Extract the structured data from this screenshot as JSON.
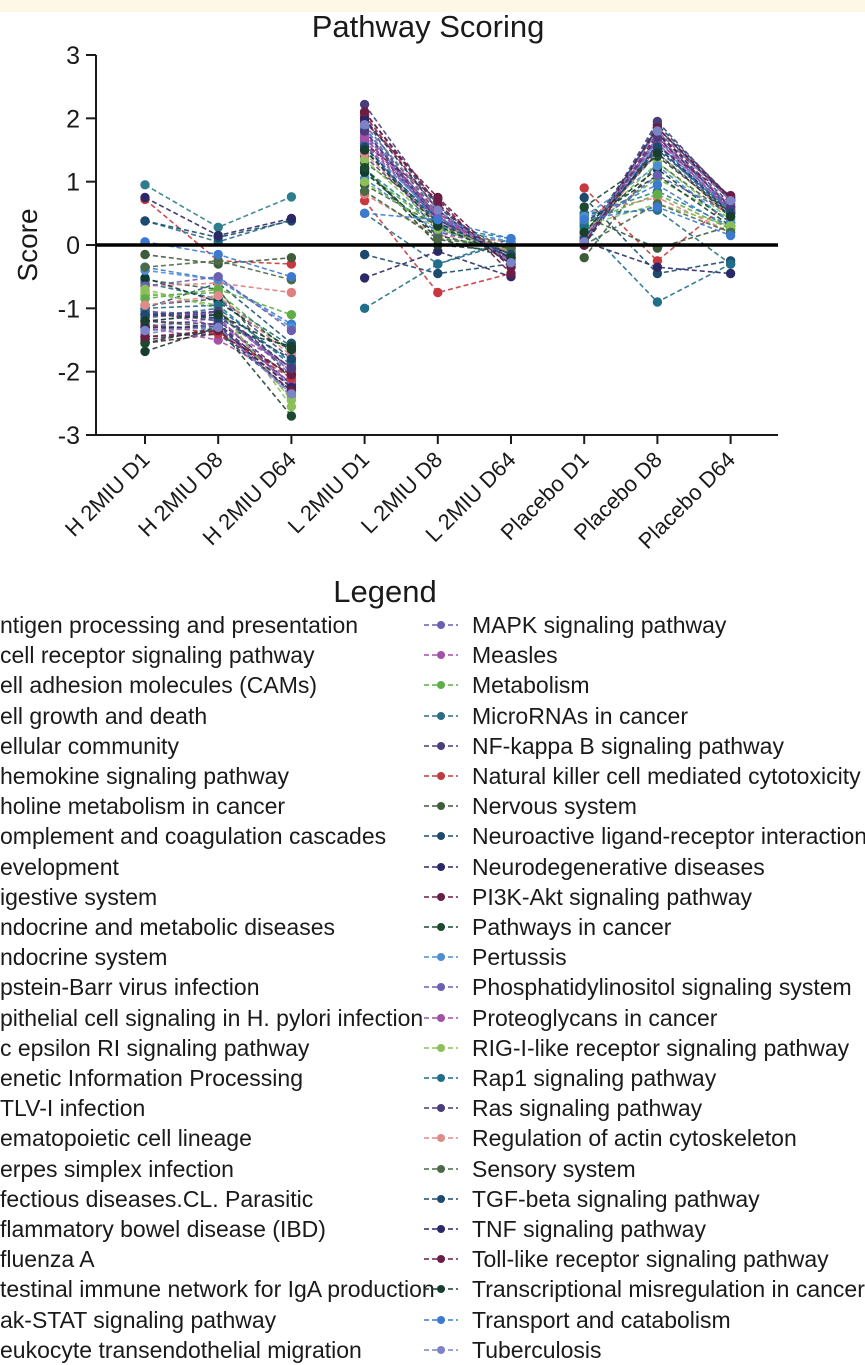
{
  "chart_data": {
    "type": "line",
    "title": "Pathway Scoring",
    "ylabel": "Score",
    "xlabel": "",
    "ylim": [
      -3,
      3
    ],
    "yticks": [
      3,
      2,
      1,
      0,
      -1,
      -2,
      -3
    ],
    "ytick_labels": [
      "3",
      "2",
      "1",
      "0",
      "-1",
      "-2",
      "-3"
    ],
    "categories": [
      "H 2MIU D1",
      "H 2MIU D8",
      "H 2MIU D64",
      "L 2MIU D1",
      "L 2MIU D8",
      "L 2MIU D64",
      "Placebo D1",
      "Placebo D8",
      "Placebo D64"
    ],
    "zero_line": true,
    "legend_title": "Legend",
    "legend_placement": "bottom",
    "series": [
      {
        "name": "ntigen processing and presentation",
        "color": "#7b6fb8",
        "values": [
          -1.22,
          -1.05,
          -2.05,
          1.75,
          0.35,
          -0.2,
          0.1,
          1.55,
          0.45
        ]
      },
      {
        "name": " cell receptor signaling pathway",
        "color": "#a050a8",
        "values": [
          -1.02,
          -1.28,
          -1.92,
          1.6,
          0.42,
          -0.12,
          0.05,
          1.68,
          0.52
        ]
      },
      {
        "name": "ell adhesion molecules (CAMs)",
        "color": "#58b148",
        "values": [
          -0.8,
          -0.75,
          -1.7,
          1.15,
          0.28,
          -0.08,
          0.25,
          1.05,
          0.4
        ]
      },
      {
        "name": "ell growth and death",
        "color": "#2d7e8d",
        "values": [
          0.95,
          0.28,
          0.76,
          1.2,
          0.3,
          0.1,
          0.45,
          0.85,
          0.3
        ]
      },
      {
        "name": "ellular community",
        "color": "#4f4180",
        "values": [
          -0.95,
          -0.85,
          -1.8,
          1.4,
          0.35,
          -0.15,
          0.1,
          1.5,
          0.6
        ]
      },
      {
        "name": "hemokine signaling pathway",
        "color": "#c8393f",
        "values": [
          0.72,
          -0.25,
          -0.3,
          0.7,
          -0.75,
          -0.45,
          0.9,
          -0.25,
          0.7
        ]
      },
      {
        "name": "holine metabolism in cancer",
        "color": "#3d5c3a",
        "values": [
          -0.55,
          -0.7,
          -2.15,
          1.3,
          0.5,
          -0.1,
          -0.2,
          1.3,
          0.45
        ]
      },
      {
        "name": "omplement and coagulation cascades",
        "color": "#1f5572",
        "values": [
          -1.0,
          -0.6,
          -1.55,
          2.0,
          0.25,
          -0.05,
          0.15,
          1.8,
          0.55
        ]
      },
      {
        "name": "evelopment",
        "color": "#2e2a66",
        "values": [
          -1.1,
          -1.1,
          -1.95,
          1.7,
          0.4,
          -0.2,
          0.0,
          1.6,
          0.5
        ]
      },
      {
        "name": "igestive system",
        "color": "#3b7ad0",
        "values": [
          -0.35,
          -0.55,
          -1.25,
          1.05,
          0.2,
          0.05,
          0.4,
          0.95,
          0.25
        ]
      },
      {
        "name": "ndocrine and metabolic diseases",
        "color": "#6a5fb0",
        "values": [
          -1.3,
          -1.15,
          -2.2,
          1.85,
          0.45,
          -0.25,
          0.05,
          1.7,
          0.6
        ]
      },
      {
        "name": "ndocrine system",
        "color": "#a351a6",
        "values": [
          -1.15,
          -1.05,
          -2.0,
          1.65,
          0.4,
          -0.2,
          0.1,
          1.65,
          0.55
        ]
      },
      {
        "name": "pstein-Barr virus infection",
        "color": "#8cbf5a",
        "values": [
          -0.75,
          -0.95,
          -2.55,
          1.35,
          0.3,
          -0.1,
          0.2,
          1.3,
          0.4
        ]
      },
      {
        "name": "pithelial cell signaling in H. pylori infection",
        "color": "#2b6a80",
        "values": [
          -0.6,
          -0.85,
          -1.6,
          1.5,
          0.35,
          -0.15,
          0.15,
          1.45,
          0.5
        ]
      },
      {
        "name": "c epsilon RI signaling pathway",
        "color": "#4b3c7c",
        "values": [
          -1.05,
          -1.2,
          -2.1,
          1.8,
          0.45,
          -0.3,
          0.05,
          1.75,
          0.65
        ]
      },
      {
        "name": "enetic Information Processing",
        "color": "#e07e80",
        "values": [
          -0.65,
          -0.6,
          -0.75,
          0.8,
          0.15,
          0.05,
          0.5,
          0.75,
          0.2
        ]
      },
      {
        "name": "TLV-I infection",
        "color": "#4a5a48",
        "values": [
          -1.2,
          -1.3,
          -2.25,
          1.9,
          0.5,
          -0.25,
          0.05,
          1.8,
          0.7
        ]
      },
      {
        "name": "ematopoietic cell lineage",
        "color": "#1d4a6e",
        "values": [
          -1.45,
          -1.4,
          -2.3,
          2.1,
          0.6,
          -0.3,
          0.0,
          1.9,
          0.75
        ]
      },
      {
        "name": "erpes simplex infection",
        "color": "#2b2868",
        "values": [
          -1.35,
          -1.25,
          -2.2,
          2.05,
          0.55,
          -0.28,
          0.0,
          1.85,
          0.7
        ]
      },
      {
        "name": "fectious diseases.CL. Parasitic",
        "color": "#661a3e",
        "values": [
          -1.55,
          -1.4,
          -2.05,
          1.95,
          0.75,
          -0.35,
          0.05,
          1.75,
          0.75
        ]
      },
      {
        "name": "flammatory bowel disease (IBD)",
        "color": "#183e2e",
        "values": [
          -1.68,
          -1.3,
          -1.6,
          1.2,
          0.1,
          -0.2,
          0.35,
          1.1,
          0.3
        ]
      },
      {
        "name": "fluenza A",
        "color": "#4c8fd0",
        "values": [
          -1.25,
          -1.35,
          -2.3,
          1.55,
          0.45,
          -0.2,
          0.1,
          1.6,
          0.55
        ]
      },
      {
        "name": "testinal immune network for IgA production",
        "color": "#0f3b35",
        "values": [
          -0.52,
          -0.9,
          -1.65,
          1.15,
          0.15,
          -0.1,
          0.3,
          1.2,
          0.35
        ]
      },
      {
        "name": "ak-STAT signaling pathway",
        "color": "#2e6e9e",
        "values": [
          -1.15,
          -1.0,
          -1.85,
          1.5,
          0.4,
          -0.15,
          0.1,
          1.5,
          0.55
        ]
      },
      {
        "name": "eukocyte transendothelial migration",
        "color": "#7d83c7",
        "values": [
          -1.4,
          -1.25,
          -2.4,
          1.75,
          0.5,
          -0.25,
          0.05,
          1.65,
          0.6
        ]
      },
      {
        "name": "MAPK signaling pathway",
        "color": "#6a5fb0",
        "values": [
          -1.05,
          -1.1,
          -2.0,
          1.7,
          0.45,
          -0.2,
          0.1,
          1.7,
          0.6
        ]
      },
      {
        "name": "Measles",
        "color": "#a351a6",
        "values": [
          -1.3,
          -1.5,
          -2.15,
          1.75,
          0.5,
          -0.25,
          0.05,
          1.72,
          0.62
        ]
      },
      {
        "name": "Metabolism",
        "color": "#5fae45",
        "values": [
          -0.85,
          -0.7,
          -1.1,
          0.85,
          0.1,
          0.0,
          0.35,
          0.8,
          0.25
        ]
      },
      {
        "name": "MicroRNAs in cancer",
        "color": "#286e86",
        "values": [
          0.38,
          0.05,
          0.4,
          0.5,
          -0.3,
          0.05,
          0.5,
          0.55,
          -0.3
        ]
      },
      {
        "name": "NF-kappa B signaling pathway",
        "color": "#4b3c7c",
        "values": [
          -1.2,
          -1.25,
          -2.35,
          2.22,
          0.62,
          -0.3,
          0.0,
          1.95,
          0.72
        ]
      },
      {
        "name": "Natural killer cell mediated cytotoxicity",
        "color": "#c03a40",
        "values": [
          -1.25,
          -1.4,
          -2.1,
          2.05,
          0.55,
          -0.3,
          0.05,
          1.8,
          0.7
        ]
      },
      {
        "name": "Nervous system",
        "color": "#3d5c3a",
        "values": [
          -0.15,
          -0.3,
          -0.2,
          0.95,
          0.3,
          -0.05,
          0.45,
          -0.05,
          0.3
        ]
      },
      {
        "name": "Neuroactive ligand-receptor interaction",
        "color": "#1d4a6e",
        "values": [
          0.38,
          0.12,
          0.38,
          -0.15,
          -0.45,
          -0.3,
          0.75,
          -0.45,
          -0.25
        ]
      },
      {
        "name": "Neurodegenerative diseases",
        "color": "#2b2868",
        "values": [
          0.75,
          0.15,
          0.42,
          -0.52,
          -0.1,
          -0.5,
          0.05,
          -0.35,
          -0.45
        ]
      },
      {
        "name": "PI3K-Akt signaling pathway",
        "color": "#6a1e46",
        "values": [
          -1.5,
          -1.35,
          -2.05,
          1.6,
          0.72,
          -0.45,
          0.05,
          1.55,
          0.78
        ]
      },
      {
        "name": "Pathways in cancer",
        "color": "#1c4a2e",
        "values": [
          -1.55,
          -1.3,
          -2.7,
          1.22,
          0.0,
          -0.1,
          0.6,
          1.4,
          0.5
        ]
      },
      {
        "name": "Pertussis",
        "color": "#4c8fd0",
        "values": [
          -0.4,
          -0.55,
          -1.3,
          1.85,
          0.3,
          0.05,
          0.45,
          1.25,
          0.35
        ]
      },
      {
        "name": "Phosphatidylinositol signaling system",
        "color": "#6a5fb0",
        "values": [
          -0.65,
          -0.5,
          -1.35,
          1.6,
          0.2,
          -0.05,
          0.2,
          1.1,
          0.5
        ]
      },
      {
        "name": "Proteoglycans in cancer",
        "color": "#a351a6",
        "values": [
          -1.1,
          -1.15,
          -2.25,
          1.7,
          0.45,
          -0.22,
          0.1,
          1.65,
          0.55
        ]
      },
      {
        "name": "RIG-I-like receptor signaling pathway",
        "color": "#8cbf5a",
        "values": [
          -0.7,
          -1.0,
          -2.45,
          1.0,
          0.25,
          -0.1,
          0.3,
          0.65,
          0.3
        ]
      },
      {
        "name": "Rap1 signaling pathway",
        "color": "#1f6e8a",
        "values": [
          -1.0,
          -0.95,
          -1.9,
          -1.0,
          -0.3,
          0.1,
          0.3,
          -0.9,
          -0.3
        ]
      },
      {
        "name": "Ras signaling pathway",
        "color": "#4b3c7c",
        "values": [
          -1.1,
          -1.05,
          -1.95,
          1.8,
          0.4,
          -0.2,
          0.05,
          1.7,
          0.6
        ]
      },
      {
        "name": "Regulation of actin cytoskeleton",
        "color": "#e08a8a",
        "values": [
          -0.95,
          -0.8,
          -1.75,
          1.45,
          0.35,
          -0.12,
          0.15,
          1.45,
          0.45
        ]
      },
      {
        "name": "Sensory system",
        "color": "#4a6a48",
        "values": [
          -0.35,
          -0.25,
          -0.55,
          0.85,
          0.1,
          -0.05,
          0.0,
          0.65,
          0.2
        ]
      },
      {
        "name": "TGF-beta signaling pathway",
        "color": "#1d4a6e",
        "values": [
          -1.1,
          -1.15,
          -1.8,
          1.55,
          0.35,
          -0.15,
          0.1,
          1.55,
          0.5
        ]
      },
      {
        "name": "TNF signaling pathway",
        "color": "#2b2868",
        "values": [
          -1.3,
          -1.3,
          -2.25,
          2.0,
          0.55,
          -0.3,
          0.05,
          1.85,
          0.7
        ]
      },
      {
        "name": "Toll-like receptor signaling pathway",
        "color": "#6a1e46",
        "values": [
          -1.45,
          -1.35,
          -2.3,
          2.1,
          0.65,
          -0.35,
          0.0,
          1.85,
          0.75
        ]
      },
      {
        "name": "Transcriptional misregulation in cancer",
        "color": "#183e2e",
        "values": [
          -1.2,
          -1.1,
          -1.65,
          1.5,
          0.3,
          -0.2,
          0.2,
          1.45,
          0.45
        ]
      },
      {
        "name": "Transport and catabolism",
        "color": "#3b7ad0",
        "values": [
          0.05,
          -0.15,
          -0.5,
          0.5,
          0.4,
          0.1,
          0.4,
          0.6,
          0.15
        ]
      },
      {
        "name": "Tuberculosis",
        "color": "#7d83c7",
        "values": [
          -1.35,
          -1.3,
          -2.35,
          1.9,
          0.55,
          -0.28,
          0.05,
          1.8,
          0.7
        ]
      }
    ]
  }
}
